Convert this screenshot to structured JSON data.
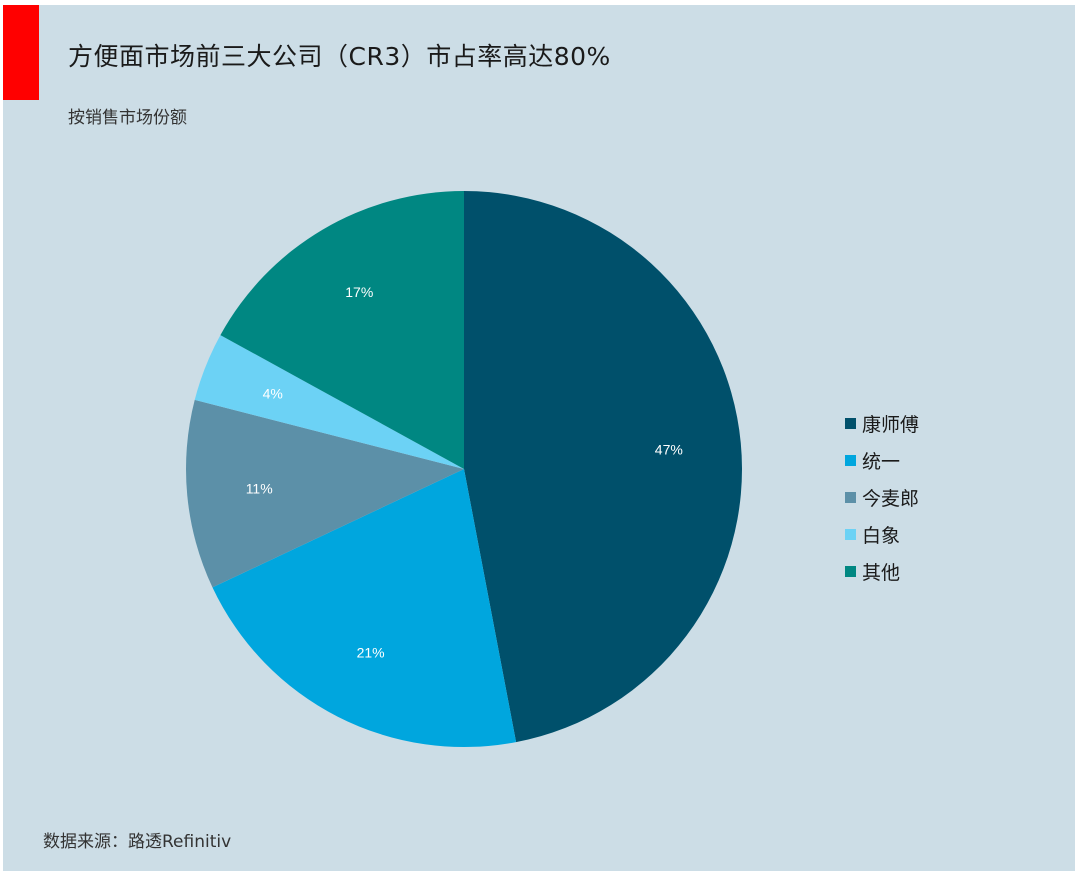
{
  "header": {
    "title": "方便面市场前三大公司（CR3）市占率高达80%",
    "subtitle": "按销售市场份额",
    "accent_color": "#ff0000"
  },
  "footer": {
    "source": "数据来源：路透Refinitiv"
  },
  "chart_data": {
    "type": "pie",
    "title": "方便面市场前三大公司（CR3）市占率高达80%",
    "subtitle": "按销售市场份额",
    "unit": "%",
    "legend_position": "right",
    "slices": [
      {
        "name": "康师傅",
        "value": 47,
        "label": "47%",
        "color": "#00506b"
      },
      {
        "name": "统一",
        "value": 21,
        "label": "21%",
        "color": "#00a6de"
      },
      {
        "name": "今麦郎",
        "value": 11,
        "label": "11%",
        "color": "#5c90a8"
      },
      {
        "name": "白象",
        "value": 4,
        "label": "4%",
        "color": "#6cd2f5"
      },
      {
        "name": "其他",
        "value": 17,
        "label": "17%",
        "color": "#008782"
      }
    ]
  }
}
